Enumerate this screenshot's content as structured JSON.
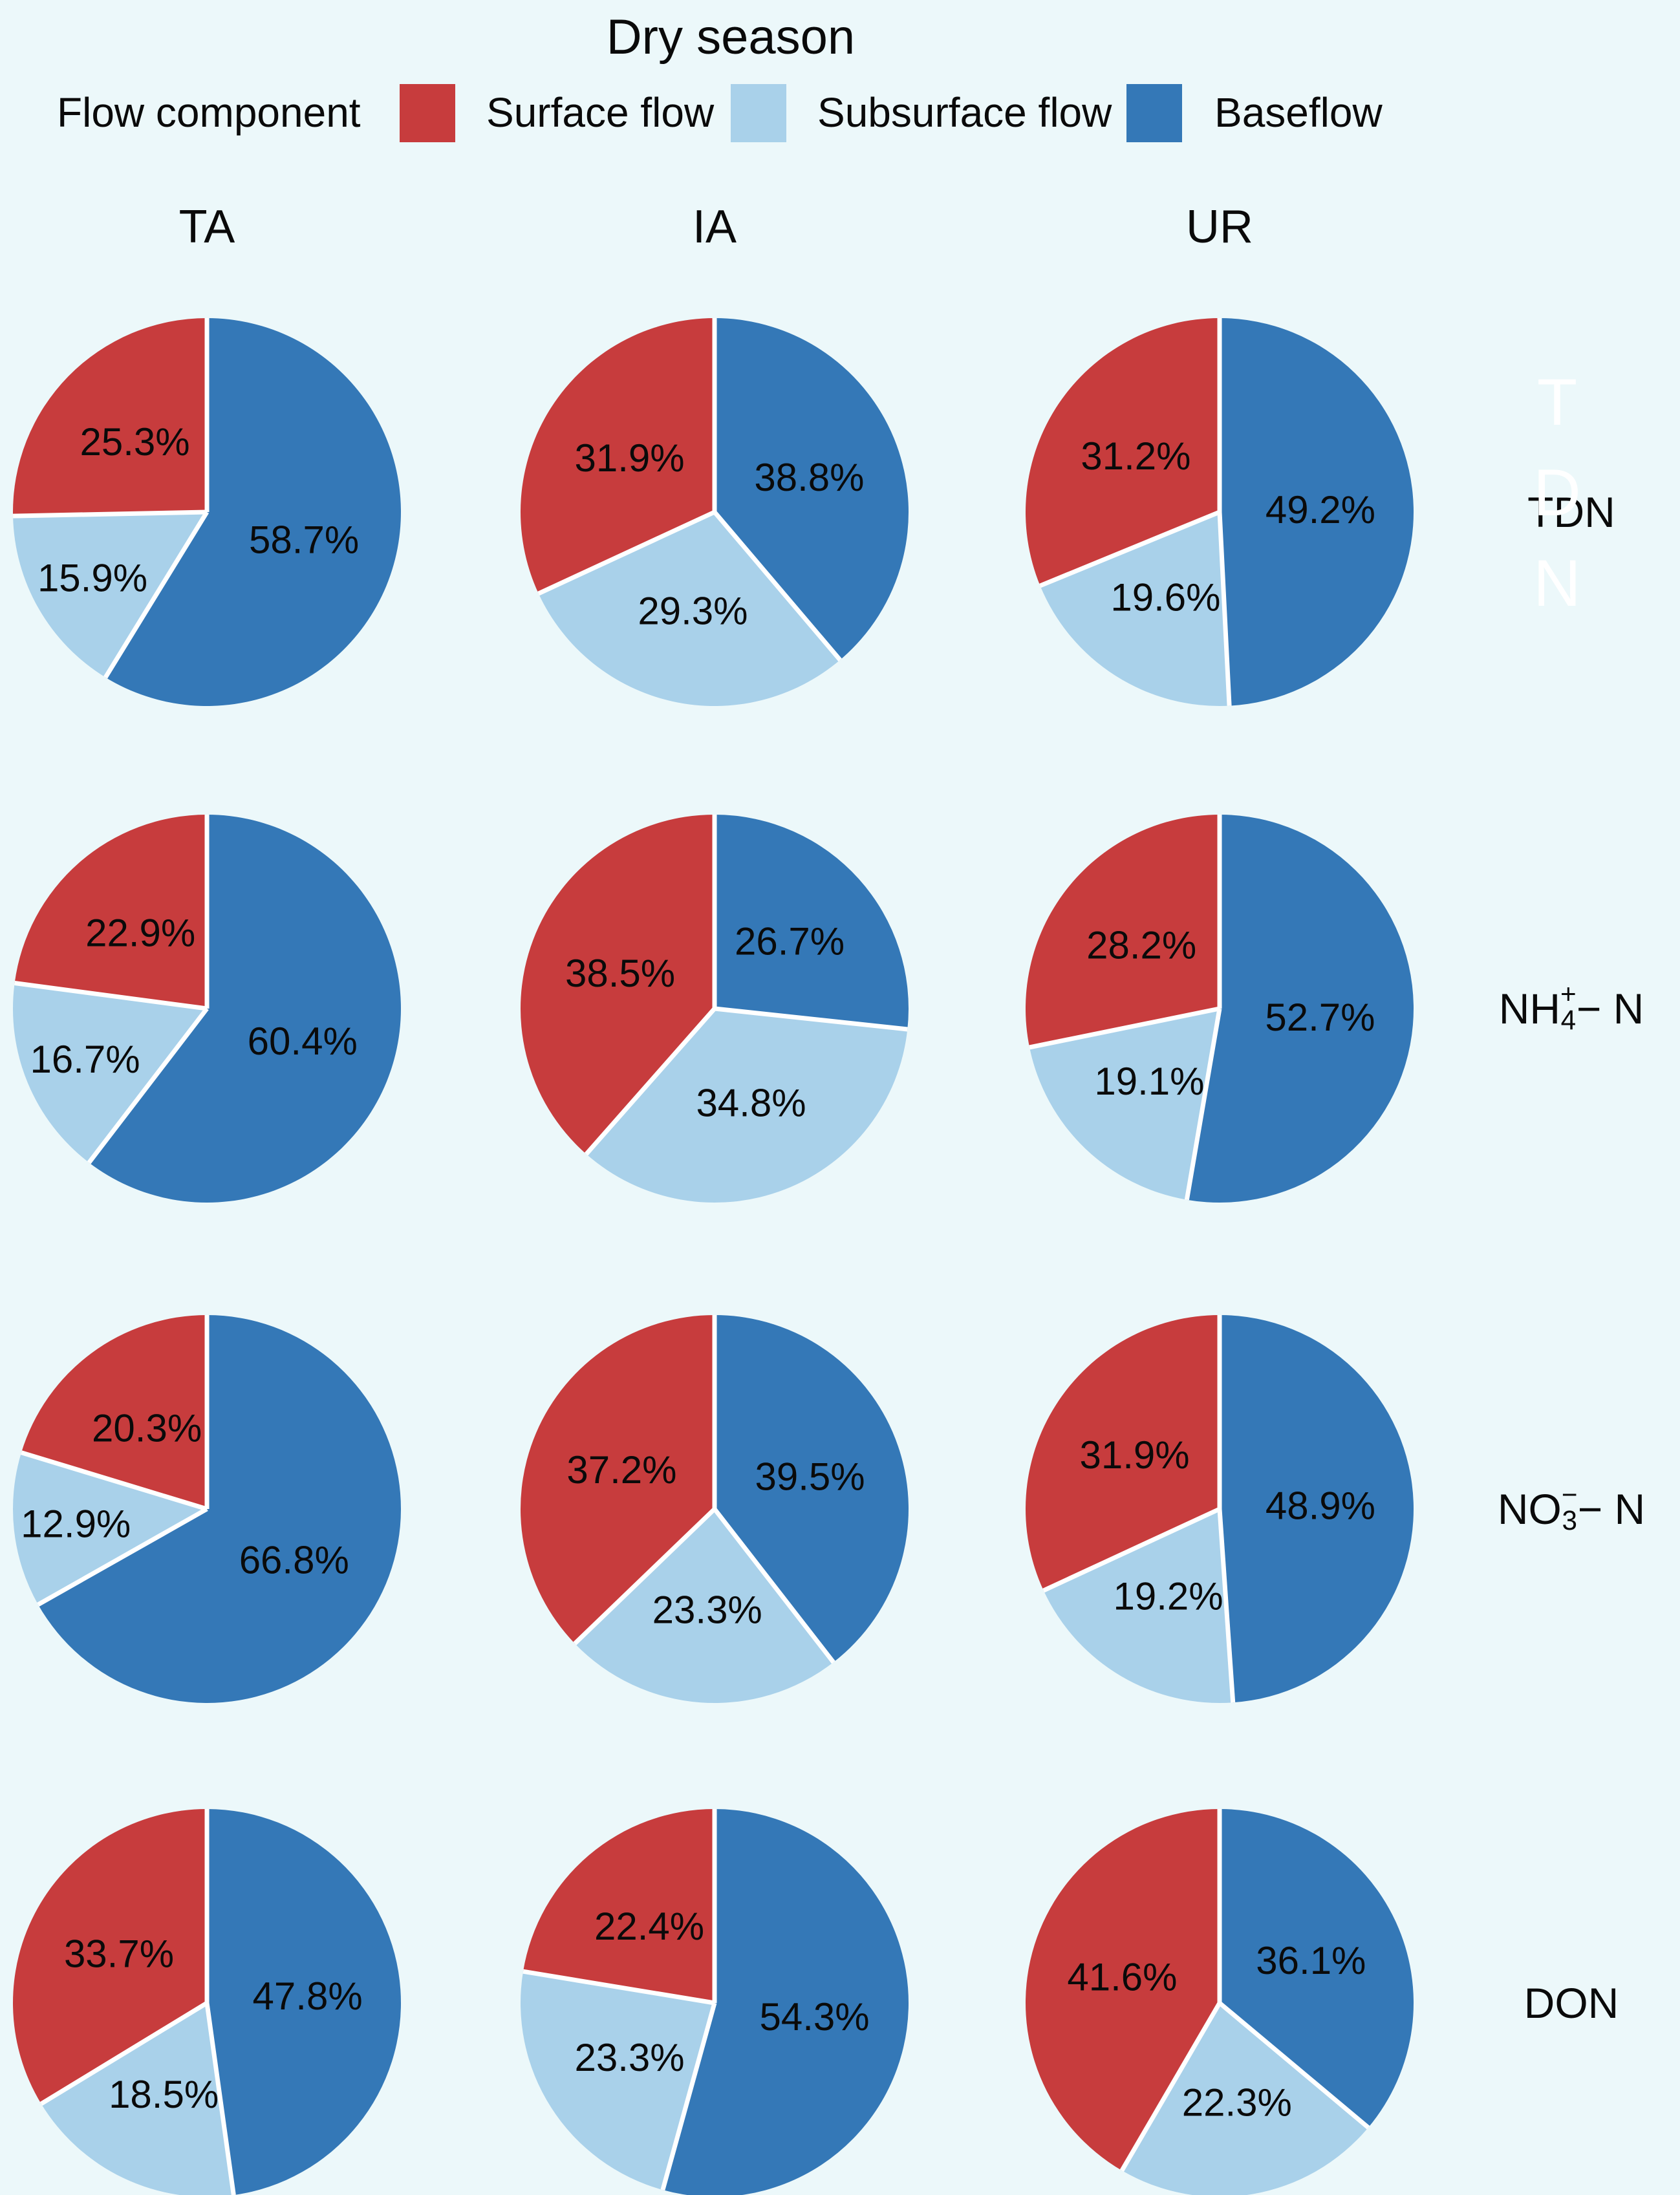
{
  "figure": {
    "background_color": "#ecf8fa",
    "text_color": "#0a0a0a"
  },
  "chart_data": {
    "type": "pie",
    "title": "Dry season",
    "legend_title": "Flow component",
    "legend_position": "top",
    "legend": [
      {
        "key": "surface",
        "label": "Surface flow",
        "color": "#c73c3d"
      },
      {
        "key": "subsurface",
        "label": "Subsurface flow",
        "color": "#a9d1ea"
      },
      {
        "key": "baseflow",
        "label": "Baseflow",
        "color": "#3478b7"
      }
    ],
    "slice_order_clockwise_from_top": [
      "baseflow",
      "subsurface",
      "surface"
    ],
    "label_format": "one_decimal_percent",
    "slice_divider_color": "#ffffff",
    "columns": [
      "TA",
      "IA",
      "UR"
    ],
    "rows": [
      {
        "label": "TDN",
        "ghost_label": "TDN",
        "formula": {
          "base": "TDN"
        },
        "pies": [
          {
            "column": "TA",
            "values": {
              "surface": 25.3,
              "subsurface": 15.9,
              "baseflow": 58.7
            }
          },
          {
            "column": "IA",
            "values": {
              "surface": 31.9,
              "subsurface": 29.3,
              "baseflow": 38.8
            }
          },
          {
            "column": "UR",
            "values": {
              "surface": 31.2,
              "subsurface": 19.6,
              "baseflow": 49.2
            }
          }
        ]
      },
      {
        "label": "NH4+ - N",
        "formula": {
          "base": "NH",
          "sub": "4",
          "sup": "+",
          "rest": " − N"
        },
        "pies": [
          {
            "column": "TA",
            "values": {
              "surface": 22.9,
              "subsurface": 16.7,
              "baseflow": 60.4
            }
          },
          {
            "column": "IA",
            "values": {
              "surface": 38.5,
              "subsurface": 34.8,
              "baseflow": 26.7
            }
          },
          {
            "column": "UR",
            "values": {
              "surface": 28.2,
              "subsurface": 19.1,
              "baseflow": 52.7
            }
          }
        ]
      },
      {
        "label": "NO3- - N",
        "formula": {
          "base": "NO",
          "sub": "3",
          "sup": "−",
          "rest": " − N"
        },
        "pies": [
          {
            "column": "TA",
            "values": {
              "surface": 20.3,
              "subsurface": 12.9,
              "baseflow": 66.8
            }
          },
          {
            "column": "IA",
            "values": {
              "surface": 37.2,
              "subsurface": 23.3,
              "baseflow": 39.5
            }
          },
          {
            "column": "UR",
            "values": {
              "surface": 31.9,
              "subsurface": 19.2,
              "baseflow": 48.9
            }
          }
        ]
      },
      {
        "label": "DON",
        "formula": {
          "base": "DON"
        },
        "pies": [
          {
            "column": "TA",
            "values": {
              "surface": 33.7,
              "subsurface": 18.5,
              "baseflow": 47.8
            }
          },
          {
            "column": "IA",
            "values": {
              "surface": 22.4,
              "subsurface": 23.3,
              "baseflow": 54.3
            }
          },
          {
            "column": "UR",
            "values": {
              "surface": 41.6,
              "subsurface": 22.3,
              "baseflow": 36.1
            }
          }
        ]
      }
    ]
  }
}
